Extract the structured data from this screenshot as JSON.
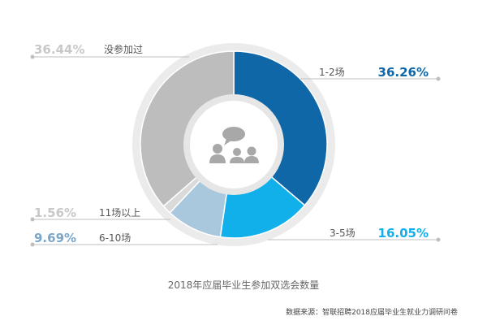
{
  "chart_data": {
    "type": "pie",
    "title": "2018年应届毕业生参加双选会数量",
    "source": "数据来源：智联招聘2018应届毕业生就业力调研问卷",
    "slices": [
      {
        "label": "1-2场",
        "value": 36.26,
        "value_label": "36.26%",
        "color": "#0F67A8",
        "label_color": "#0F67A8"
      },
      {
        "label": "3-5场",
        "value": 16.05,
        "value_label": "16.05%",
        "color": "#12B0EA",
        "label_color": "#12B0EA"
      },
      {
        "label": "6-10场",
        "value": 9.69,
        "value_label": "9.69%",
        "color": "#A9C8DE",
        "label_color": "#7BA6C8"
      },
      {
        "label": "11场以上",
        "value": 1.56,
        "value_label": "1.56%",
        "color": "#DADADA",
        "label_color": "#C8C8C8"
      },
      {
        "label": "没参加过",
        "value": 36.44,
        "value_label": "36.44%",
        "color": "#BDBDBD",
        "label_color": "#C8C8C8"
      }
    ],
    "center_icon": "people-chat-icon",
    "legend": "callout-labels"
  }
}
